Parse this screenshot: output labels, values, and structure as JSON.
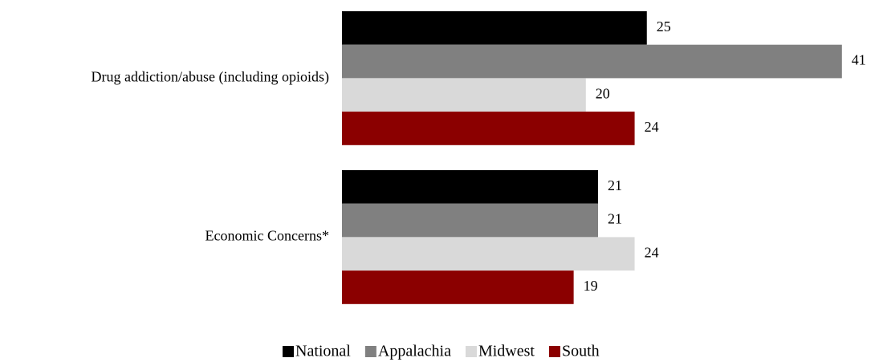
{
  "chart_data": {
    "type": "bar",
    "orientation": "horizontal",
    "categories": [
      "Drug addiction/abuse (including opioids)",
      "Economic Concerns*"
    ],
    "series": [
      {
        "name": "National",
        "color": "#000000",
        "values": [
          25,
          21
        ]
      },
      {
        "name": "Appalachia",
        "color": "#808080",
        "values": [
          41,
          21
        ]
      },
      {
        "name": "Midwest",
        "color": "#d9d9d9",
        "values": [
          20,
          24
        ]
      },
      {
        "name": "South",
        "color": "#8b0000",
        "values": [
          24,
          19
        ]
      }
    ],
    "xlim": [
      0,
      42
    ],
    "legend": "bottom"
  }
}
